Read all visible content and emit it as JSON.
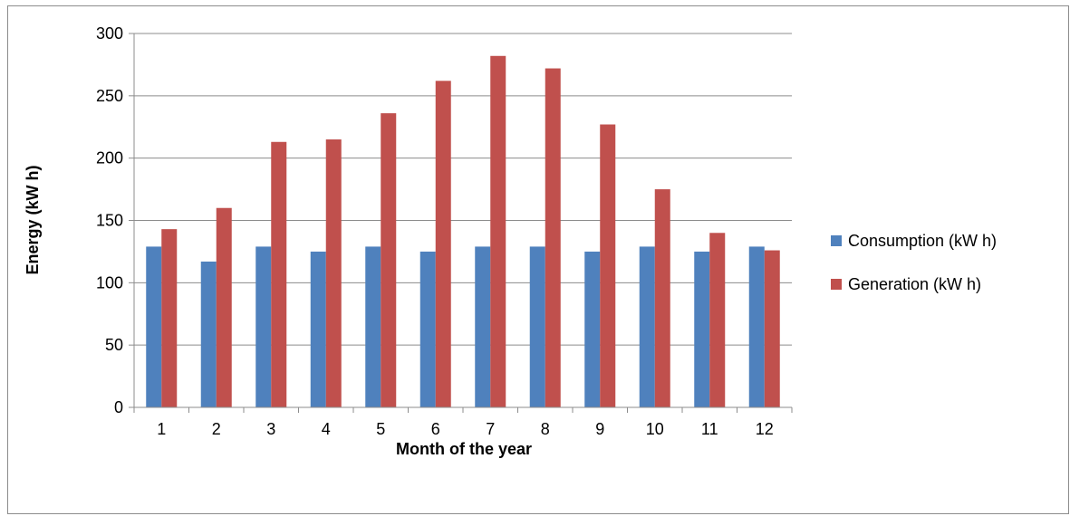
{
  "chart_data": {
    "type": "bar",
    "title": "",
    "xlabel": "Month of the year",
    "ylabel": "Energy (kW h)",
    "categories": [
      "1",
      "2",
      "3",
      "4",
      "5",
      "6",
      "7",
      "8",
      "9",
      "10",
      "11",
      "12"
    ],
    "series": [
      {
        "name": "Consumption (kW h)",
        "color": "#4f81bd",
        "values": [
          129,
          117,
          129,
          125,
          129,
          125,
          129,
          129,
          125,
          129,
          125,
          129
        ]
      },
      {
        "name": "Generation (kW h)",
        "color": "#c0504d",
        "values": [
          143,
          160,
          213,
          215,
          236,
          262,
          282,
          272,
          227,
          175,
          140,
          126
        ]
      }
    ],
    "ylim": [
      0,
      300
    ],
    "yticks": [
      "0",
      "50",
      "100",
      "150",
      "200",
      "250",
      "300"
    ],
    "grid": true,
    "legend_position": "right"
  }
}
